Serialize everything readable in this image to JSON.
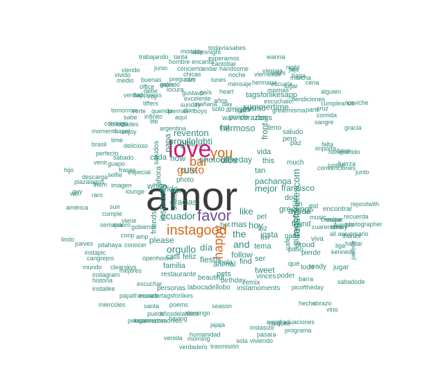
{
  "palette": {
    "teal": "#2e8b7a",
    "dark": "#3a3a3a",
    "purple": "#6b4f96",
    "magenta": "#cc1a7a",
    "orange": "#d4691c",
    "olive": "#6a8a2a"
  },
  "words": [
    {
      "t": "amor",
      "c": "dark"
    },
    {
      "t": "love",
      "c": "magenta"
    },
    {
      "t": "you",
      "c": "orange"
    },
    {
      "t": "favor",
      "c": "purple"
    },
    {
      "t": "instagood",
      "c": "orange"
    },
    {
      "t": "bar",
      "c": "orange"
    },
    {
      "t": "gusto",
      "c": "orange"
    },
    {
      "t": "happy",
      "c": "orange"
    },
    {
      "t": "ecuador",
      "c": "teal"
    },
    {
      "t": "orgullo",
      "c": "teal"
    },
    {
      "t": "día",
      "c": "teal"
    },
    {
      "t": "fiesta",
      "c": "teal"
    },
    {
      "t": "photooftheday",
      "c": "teal"
    },
    {
      "t": "dios",
      "c": "teal"
    },
    {
      "t": "like",
      "c": "teal"
    },
    {
      "t": "hoy",
      "c": "teal"
    },
    {
      "t": "the",
      "c": "teal"
    },
    {
      "t": "mas",
      "c": "teal"
    },
    {
      "t": "and",
      "c": "teal"
    },
    {
      "t": "follow",
      "c": "teal"
    },
    {
      "t": "tagsforlikescom",
      "c": "teal"
    },
    {
      "t": "guayaquil",
      "c": "teal"
    },
    {
      "t": "mejor",
      "c": "teal"
    },
    {
      "t": "francisco",
      "c": "teal"
    },
    {
      "t": "greetings",
      "c": "teal"
    },
    {
      "t": "pachanga",
      "c": "teal"
    },
    {
      "t": "please",
      "c": "teal"
    },
    {
      "t": "cute",
      "c": "teal"
    },
    {
      "t": "reventon",
      "c": "teal"
    },
    {
      "t": "orgullolgbti",
      "c": "teal"
    },
    {
      "t": "hermoso",
      "c": "teal"
    },
    {
      "t": "cat",
      "c": "teal"
    },
    {
      "t": "glbti",
      "c": "teal"
    },
    {
      "t": "pride",
      "c": "teal"
    },
    {
      "t": "when",
      "c": "teal"
    },
    {
      "t": "how",
      "c": "teal"
    },
    {
      "t": "this",
      "c": "teal"
    },
    {
      "t": "vida",
      "c": "teal"
    },
    {
      "t": "dog",
      "c": "teal"
    },
    {
      "t": "tan",
      "c": "teal"
    },
    {
      "t": "ayuda",
      "c": "teal"
    },
    {
      "t": "friend",
      "c": "teal"
    },
    {
      "t": "insta",
      "c": "teal"
    },
    {
      "t": "tema",
      "c": "teal"
    },
    {
      "t": "tweet",
      "c": "teal"
    },
    {
      "t": "ser",
      "c": "teal"
    },
    {
      "t": "find",
      "c": "teal"
    },
    {
      "t": "animal",
      "c": "teal"
    },
    {
      "t": "hola",
      "c": "teal"
    },
    {
      "t": "familia",
      "c": "teal"
    },
    {
      "t": "feliz",
      "c": "teal"
    },
    {
      "t": "cats",
      "c": "teal"
    },
    {
      "t": "pets",
      "c": "teal"
    },
    {
      "t": "gracias",
      "c": "teal"
    },
    {
      "t": "instadaily",
      "c": "teal"
    },
    {
      "t": "friends",
      "c": "teal"
    },
    {
      "t": "smile",
      "c": "teal"
    },
    {
      "t": "ver",
      "c": "teal"
    },
    {
      "t": "photo",
      "c": "teal"
    },
    {
      "t": "cada",
      "c": "teal"
    },
    {
      "t": "papa",
      "c": "teal"
    },
    {
      "t": "ahora",
      "c": "teal"
    },
    {
      "t": "saludos",
      "c": "teal"
    },
    {
      "t": "summertime",
      "c": "teal"
    },
    {
      "t": "corazon",
      "c": "teal"
    },
    {
      "t": "tagsforlikesapp",
      "c": "teal"
    },
    {
      "t": "front",
      "c": "teal"
    },
    {
      "t": "want",
      "c": "teal"
    },
    {
      "t": "amigos",
      "c": "teal"
    },
    {
      "t": "mismo",
      "c": "teal"
    },
    {
      "t": "solo",
      "c": "teal"
    },
    {
      "t": "puede",
      "c": "teal"
    },
    {
      "t": "dogs",
      "c": "teal"
    },
    {
      "t": "lleno",
      "c": "teal"
    },
    {
      "t": "saludo",
      "c": "teal"
    },
    {
      "t": "pero",
      "c": "teal"
    },
    {
      "t": "paz",
      "c": "teal"
    },
    {
      "t": "much",
      "c": "teal"
    },
    {
      "t": "fin",
      "c": "teal"
    },
    {
      "t": "est",
      "c": "teal"
    },
    {
      "t": "encontrar",
      "c": "teal"
    },
    {
      "t": "repostwith",
      "c": "teal"
    },
    {
      "t": "music",
      "c": "teal"
    },
    {
      "t": "cambiar",
      "c": "teal"
    },
    {
      "t": "aunque",
      "c": "teal"
    },
    {
      "t": "proud",
      "c": "teal"
    },
    {
      "t": "paso",
      "c": "teal"
    },
    {
      "t": "viva",
      "c": "teal"
    },
    {
      "t": "pierde",
      "c": "teal"
    },
    {
      "t": "liga",
      "c": "teal"
    },
    {
      "t": "nada",
      "c": "teal"
    },
    {
      "t": "cafe",
      "c": "teal"
    },
    {
      "t": "hot",
      "c": "teal"
    },
    {
      "t": "pet",
      "c": "teal"
    },
    {
      "t": "luz",
      "c": "teal"
    },
    {
      "t": "así",
      "c": "teal"
    },
    {
      "t": "ready",
      "c": "teal"
    },
    {
      "t": "jugar",
      "c": "teal"
    },
    {
      "t": "vinces",
      "c": "teal"
    },
    {
      "t": "poder",
      "c": "teal"
    },
    {
      "t": "que",
      "c": "teal"
    },
    {
      "t": "todo",
      "c": "teal"
    },
    {
      "t": "beautiful",
      "c": "teal"
    },
    {
      "t": "birthday",
      "c": "teal"
    },
    {
      "t": "remix",
      "c": "teal"
    },
    {
      "t": "restaurante",
      "c": "teal"
    },
    {
      "t": "personas",
      "c": "teal"
    },
    {
      "t": "labocadellobo",
      "c": "teal"
    },
    {
      "t": "instamoments",
      "c": "teal"
    },
    {
      "t": "picoftheday",
      "c": "teal"
    },
    {
      "t": "papafrancisco",
      "c": "teal"
    },
    {
      "t": "ecuadortagsforlikes",
      "c": "teal"
    },
    {
      "t": "poems",
      "c": "teal"
    },
    {
      "t": "season",
      "c": "teal"
    },
    {
      "t": "santa",
      "c": "teal"
    },
    {
      "t": "añosdelaboca",
      "c": "teal"
    },
    {
      "t": "domingo",
      "c": "teal"
    },
    {
      "t": "lugarmatrimonios",
      "c": "teal"
    },
    {
      "t": "humanidad",
      "c": "teal"
    },
    {
      "t": "instasize",
      "c": "teal"
    },
    {
      "t": "venida",
      "c": "teal"
    },
    {
      "t": "morning",
      "c": "teal"
    },
    {
      "t": "sola",
      "c": "teal"
    },
    {
      "t": "pasara",
      "c": "teal"
    },
    {
      "t": "verdadero",
      "c": "teal"
    },
    {
      "t": "trasmisión",
      "c": "teal"
    },
    {
      "t": "viviendo",
      "c": "teal"
    },
    {
      "t": "todavía",
      "c": "teal"
    },
    {
      "t": "sabes",
      "c": "teal"
    },
    {
      "t": "monday",
      "c": "teal"
    },
    {
      "t": "ladiesnight",
      "c": "teal"
    },
    {
      "t": "tanta",
      "c": "teal"
    },
    {
      "t": "esperamos",
      "c": "teal"
    },
    {
      "t": "trabajando",
      "c": "teal"
    },
    {
      "t": "hombre",
      "c": "teal"
    },
    {
      "t": "encanta",
      "c": "teal"
    },
    {
      "t": "cantobar",
      "c": "teal"
    },
    {
      "t": "wanna",
      "c": "teal"
    },
    {
      "t": "concierto",
      "c": "teal"
    },
    {
      "t": "andar",
      "c": "teal"
    },
    {
      "t": "handsome",
      "c": "teal"
    },
    {
      "t": "viendo",
      "c": "teal"
    },
    {
      "t": "junio",
      "c": "teal"
    },
    {
      "t": "chicas",
      "c": "teal"
    },
    {
      "t": "noche",
      "c": "teal"
    },
    {
      "t": "viernesde",
      "c": "teal"
    },
    {
      "t": "viernes",
      "c": "teal"
    },
    {
      "t": "sushi",
      "c": "teal"
    },
    {
      "t": "night",
      "c": "teal"
    },
    {
      "t": "jaja",
      "c": "teal"
    },
    {
      "t": "vivido",
      "c": "teal"
    },
    {
      "t": "pregunte",
      "c": "teal"
    },
    {
      "t": "cant",
      "c": "teal"
    },
    {
      "t": "lunes",
      "c": "teal"
    },
    {
      "t": "mensaje",
      "c": "teal"
    },
    {
      "t": "hermana",
      "c": "teal"
    },
    {
      "t": "haga",
      "c": "teal"
    },
    {
      "t": "marcha",
      "c": "teal"
    },
    {
      "t": "medio",
      "c": "teal"
    },
    {
      "t": "buenas",
      "c": "teal"
    },
    {
      "t": "office",
      "c": "teal"
    },
    {
      "t": "galindo",
      "c": "teal"
    },
    {
      "t": "mom",
      "c": "teal"
    },
    {
      "t": "escuela",
      "c": "teal"
    },
    {
      "t": "mismas",
      "c": "teal"
    },
    {
      "t": "lugar",
      "c": "teal"
    },
    {
      "t": "cena",
      "c": "teal"
    },
    {
      "t": "debe",
      "c": "teal"
    },
    {
      "t": "locura",
      "c": "teal"
    },
    {
      "t": "gustavo",
      "c": "teal"
    },
    {
      "t": "país",
      "c": "teal"
    },
    {
      "t": "heart",
      "c": "teal"
    },
    {
      "t": "alguien",
      "c": "teal"
    },
    {
      "t": "verdad",
      "c": "teal"
    },
    {
      "t": "happiness",
      "c": "teal"
    },
    {
      "t": "voy",
      "c": "teal"
    },
    {
      "t": "excelente",
      "c": "teal"
    },
    {
      "t": "años",
      "c": "teal"
    },
    {
      "t": "escuchalo",
      "c": "teal"
    },
    {
      "t": "bendiciones",
      "c": "teal"
    },
    {
      "t": "tiffers",
      "c": "teal"
    },
    {
      "t": "sunday",
      "c": "teal"
    },
    {
      "t": "mañana",
      "c": "teal"
    },
    {
      "t": "day",
      "c": "teal"
    },
    {
      "t": "cumpleaños",
      "c": "teal"
    },
    {
      "t": "ceviche",
      "c": "teal"
    },
    {
      "t": "tomorrow",
      "c": "teal"
    },
    {
      "t": "verte",
      "c": "teal"
    },
    {
      "t": "querido",
      "c": "teal"
    },
    {
      "t": "piernas",
      "c": "teal"
    },
    {
      "t": "dias",
      "c": "teal"
    },
    {
      "t": "final",
      "c": "teal"
    },
    {
      "t": "great",
      "c": "teal"
    },
    {
      "t": "misma",
      "c": "teal"
    },
    {
      "t": "parte",
      "c": "teal"
    },
    {
      "t": "cruz",
      "c": "teal"
    },
    {
      "t": "sabe",
      "c": "teal"
    },
    {
      "t": "infinito",
      "c": "teal"
    },
    {
      "t": "aquí",
      "c": "teal"
    },
    {
      "t": "boys",
      "c": "teal"
    },
    {
      "t": "comida",
      "c": "teal"
    },
    {
      "t": "sangre",
      "c": "teal"
    },
    {
      "t": "conmigo",
      "c": "teal"
    },
    {
      "t": "felicidades",
      "c": "teal"
    },
    {
      "t": "life",
      "c": "teal"
    },
    {
      "t": "argentina",
      "c": "teal"
    },
    {
      "t": "hacer",
      "c": "teal"
    },
    {
      "t": "momento",
      "c": "teal"
    },
    {
      "t": "enjoy",
      "c": "teal"
    },
    {
      "t": "delicioso",
      "c": "teal"
    },
    {
      "t": "brasil",
      "c": "teal"
    },
    {
      "t": "time",
      "c": "teal"
    },
    {
      "t": "guapo",
      "c": "teal"
    },
    {
      "t": "venir",
      "c": "teal"
    },
    {
      "t": "sábado",
      "c": "teal"
    },
    {
      "t": "perfecto",
      "c": "teal"
    },
    {
      "t": "descarga",
      "c": "teal"
    },
    {
      "t": "frases",
      "c": "teal"
    },
    {
      "t": "selfie",
      "c": "teal"
    },
    {
      "t": "imagen",
      "c": "teal"
    },
    {
      "t": "hijo",
      "c": "teal"
    },
    {
      "t": "plazalagos",
      "c": "teal"
    },
    {
      "t": "them",
      "c": "teal"
    },
    {
      "t": "especial",
      "c": "teal"
    },
    {
      "t": "guy",
      "c": "teal"
    },
    {
      "t": "will",
      "c": "teal"
    },
    {
      "t": "raro",
      "c": "teal"
    },
    {
      "t": "américa",
      "c": "teal"
    },
    {
      "t": "sun",
      "c": "teal"
    },
    {
      "t": "lounge",
      "c": "teal"
    },
    {
      "t": "cumple",
      "c": "teal"
    },
    {
      "t": "viene",
      "c": "teal"
    },
    {
      "t": "gobierno",
      "c": "teal"
    },
    {
      "t": "semana",
      "c": "teal"
    },
    {
      "t": "quiero",
      "c": "teal"
    },
    {
      "t": "coop",
      "c": "teal"
    },
    {
      "t": "amp",
      "c": "teal"
    },
    {
      "t": "lindo",
      "c": "teal"
    },
    {
      "t": "jueves",
      "c": "teal"
    },
    {
      "t": "pitahaya",
      "c": "teal"
    },
    {
      "t": "instapic",
      "c": "teal"
    },
    {
      "t": "cangrejos",
      "c": "teal"
    },
    {
      "t": "conocer",
      "c": "teal"
    },
    {
      "t": "clearskys",
      "c": "teal"
    },
    {
      "t": "openhouse",
      "c": "teal"
    },
    {
      "t": "mundo",
      "c": "teal"
    },
    {
      "t": "instagram",
      "c": "teal"
    },
    {
      "t": "historia",
      "c": "teal"
    },
    {
      "t": "mejores",
      "c": "teal"
    },
    {
      "t": "escuchar",
      "c": "teal"
    },
    {
      "t": "instalike",
      "c": "teal"
    },
    {
      "t": "miercoles",
      "c": "teal"
    },
    {
      "t": "pensamientos",
      "c": "teal"
    },
    {
      "t": "puedo",
      "c": "teal"
    },
    {
      "t": "having",
      "c": "teal"
    },
    {
      "t": "graduaciones",
      "c": "teal"
    },
    {
      "t": "hecho",
      "c": "teal"
    },
    {
      "t": "abrazo",
      "c": "teal"
    },
    {
      "t": "espol",
      "c": "teal"
    },
    {
      "t": "chiquito",
      "c": "teal"
    },
    {
      "t": "jajaja",
      "c": "teal"
    },
    {
      "t": "programa",
      "c": "teal"
    },
    {
      "t": "vino",
      "c": "teal"
    },
    {
      "t": "sábadode",
      "c": "teal"
    },
    {
      "t": "photographer",
      "c": "teal"
    },
    {
      "t": "recuerda",
      "c": "teal"
    },
    {
      "t": "hablar",
      "c": "teal"
    },
    {
      "t": "parece",
      "c": "teal"
    },
    {
      "t": "thanks",
      "c": "teal"
    },
    {
      "t": "kennedy",
      "c": "teal"
    },
    {
      "t": "barra",
      "c": "teal"
    },
    {
      "t": "cuarentena",
      "c": "teal"
    },
    {
      "t": "all aniversario",
      "c": "teal"
    },
    {
      "t": "mujer",
      "c": "teal"
    },
    {
      "t": "sunny",
      "c": "teal"
    },
    {
      "t": "gracia",
      "c": "teal"
    },
    {
      "t": "have",
      "c": "teal"
    },
    {
      "t": "juntos",
      "c": "teal"
    },
    {
      "t": "fuerza",
      "c": "teal"
    },
    {
      "t": "convenciones",
      "c": "teal"
    },
    {
      "t": "falta",
      "c": "teal"
    },
    {
      "t": "importa",
      "c": "teal"
    },
    {
      "t": "horapartido",
      "c": "teal"
    },
    {
      "t": "junto",
      "c": "teal"
    },
    {
      "t": "frase",
      "c": "teal"
    },
    {
      "t": "cacao",
      "c": "teal"
    },
    {
      "t": "amar",
      "c": "teal"
    }
  ]
}
